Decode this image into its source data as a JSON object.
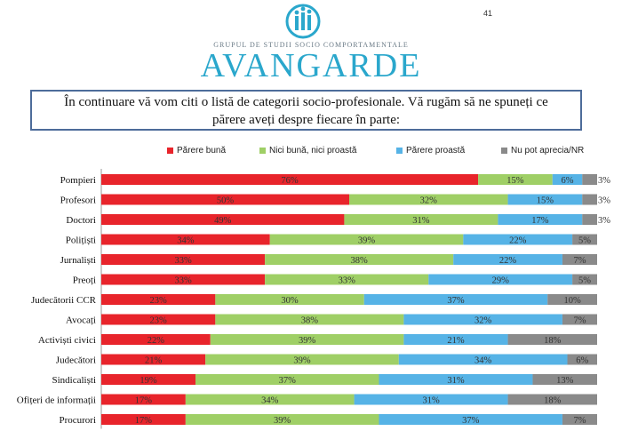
{
  "header": {
    "org_subtitle": "GRUPUL DE STUDII SOCIO COMPORTAMENTALE",
    "org_name": "AVANGARDE",
    "corner_mark": "41"
  },
  "question": {
    "line1": "În continuare vă vom citi o listă de categorii socio-profesionale. Vă rugăm să ne spuneți ce",
    "line2": "părere aveți despre fiecare în parte:"
  },
  "colors": {
    "good": "#e8242b",
    "neutral": "#9fcf66",
    "bad": "#56b3e6",
    "nr": "#8a8a8a",
    "brand": "#2aa7cc"
  },
  "chart_data": {
    "type": "bar",
    "orientation": "horizontal",
    "stacked": true,
    "xlim": [
      0,
      100
    ],
    "categories": [
      "Pompieri",
      "Profesori",
      "Doctori",
      "Polițiști",
      "Jurnaliști",
      "Preoți",
      "Judecătorii CCR",
      "Avocați",
      "Activiști civici",
      "Judecători",
      "Sindicaliști",
      "Ofițeri de informații",
      "Procurori"
    ],
    "series": [
      {
        "name": "Părere bună",
        "values": [
          76,
          50,
          49,
          34,
          33,
          33,
          23,
          23,
          22,
          21,
          19,
          17,
          17
        ],
        "labels": [
          "76%",
          "50%",
          "49%",
          "34%",
          "33%",
          "33%",
          "23%",
          "23%",
          "22%",
          "21%",
          "19%",
          "17%",
          "17%"
        ]
      },
      {
        "name": "Nici bună, nici proastă",
        "values": [
          15,
          32,
          31,
          39,
          38,
          33,
          30,
          38,
          39,
          39,
          37,
          34,
          39
        ],
        "labels": [
          "15%",
          "32%",
          "31%",
          "39%",
          "38%",
          "33%",
          "30%",
          "38%",
          "39%",
          "39%",
          "37%",
          "34%",
          "39%"
        ]
      },
      {
        "name": "Părere proastă",
        "values": [
          6,
          15,
          17,
          22,
          22,
          29,
          37,
          32,
          21,
          34,
          31,
          31,
          37
        ],
        "labels": [
          "6%",
          "15%",
          "17%",
          "22%",
          "22%",
          "29%",
          "37%",
          "32%",
          "21%",
          "34%",
          "31%",
          "31%",
          "37%"
        ]
      },
      {
        "name": "Nu pot aprecia/NR",
        "values": [
          3,
          3,
          3,
          5,
          7,
          5,
          10,
          7,
          18,
          6,
          13,
          18,
          7
        ],
        "labels": [
          "3%",
          "3%",
          "3%",
          "5%",
          "7%",
          "5%",
          "10%",
          "7%",
          "18%",
          "6%",
          "13%",
          "18%",
          "7%"
        ]
      }
    ]
  }
}
